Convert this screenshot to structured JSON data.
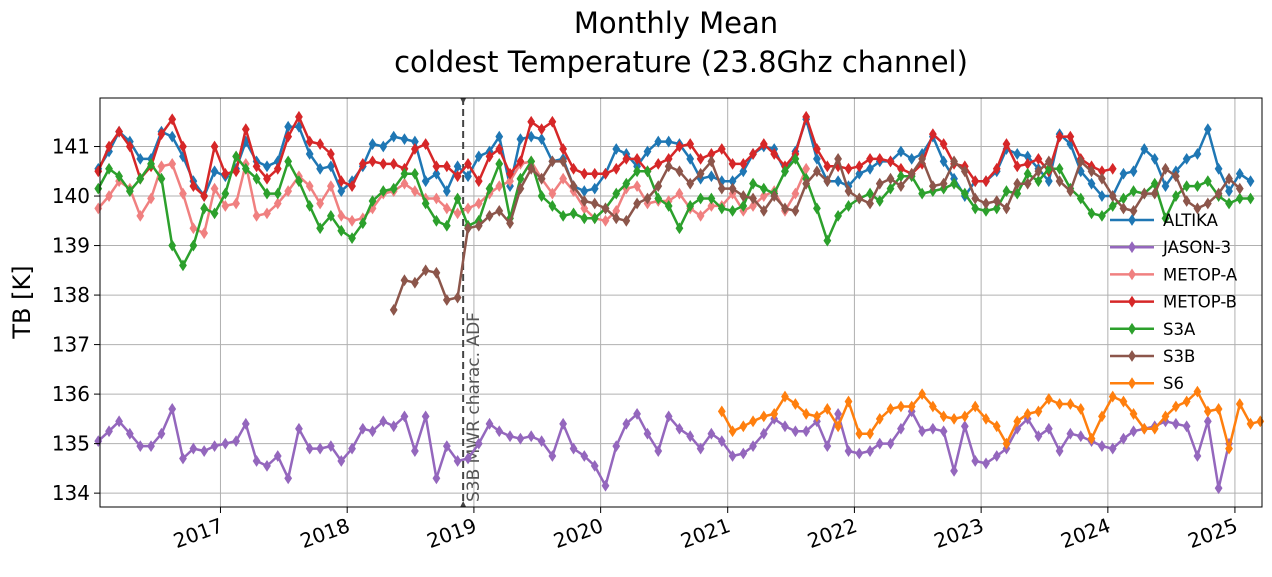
{
  "chart_data": {
    "type": "line",
    "title": "Monthly Mean\ncoldest Temperature (23.8Ghz channel)",
    "title_lines": [
      "Monthly Mean",
      "coldest Temperature (23.8Ghz channel)"
    ],
    "xlabel": "",
    "ylabel": "TB [K]",
    "xlim": [
      "2016-01-20",
      "2025-03-20"
    ],
    "ylim": [
      133.72,
      141.98
    ],
    "x_ticks": [
      "2017",
      "2018",
      "2019",
      "2020",
      "2021",
      "2022",
      "2023",
      "2024",
      "2025"
    ],
    "y_ticks": [
      134,
      135,
      136,
      137,
      138,
      139,
      140,
      141
    ],
    "grid": true,
    "legend_position": "right",
    "marker": "thin diamond",
    "annotation": {
      "date": "2018-12-01",
      "text": "S3B MWR charac. ADF",
      "style": "dashed vertical line"
    },
    "series": [
      {
        "name": "ALTIKA",
        "color": "#1f77b4",
        "start": "2016-01",
        "values": [
          140.55,
          140.9,
          141.3,
          141.1,
          140.75,
          140.75,
          141.3,
          141.2,
          140.8,
          140.3,
          140,
          140.5,
          140.4,
          140.55,
          141.1,
          140.7,
          140.6,
          140.7,
          141.4,
          141.4,
          140.85,
          140.55,
          140.6,
          140.1,
          140.3,
          140.6,
          141.05,
          141,
          141.2,
          141.15,
          141.1,
          140.3,
          140.45,
          140.1,
          140.6,
          140.4,
          140.8,
          140.9,
          141.2,
          140.2,
          141.15,
          141.2,
          141.15,
          140.7,
          140.75,
          140.2,
          140.1,
          140.15,
          140.45,
          140.95,
          140.85,
          140.6,
          140.9,
          141.1,
          141.1,
          141.05,
          140.75,
          140.35,
          140.4,
          140.3,
          140.3,
          140.5,
          140.85,
          141,
          140.95,
          140.5,
          140.9,
          141.55,
          140.75,
          140.3,
          140.3,
          140.2,
          140.45,
          140.55,
          140.7,
          140.7,
          140.9,
          140.75,
          140.85,
          141.2,
          140.7,
          140.35,
          140,
          140.3,
          140.3,
          140.5,
          140.95,
          140.85,
          140.8,
          140.55,
          140.3,
          141.25,
          141.05,
          140.5,
          140.25,
          140,
          140,
          140.45,
          140.5,
          140.95,
          140.75,
          140.2,
          140.5,
          140.75,
          140.85,
          141.35,
          140.55,
          140.1,
          140.45,
          140.3
        ]
      },
      {
        "name": "JASON-3",
        "color": "#9467bd",
        "start": "2016-01",
        "values": [
          135.05,
          135.25,
          135.45,
          135.2,
          134.95,
          134.95,
          135.2,
          135.7,
          134.7,
          134.9,
          134.85,
          134.95,
          135,
          135.05,
          135.4,
          134.65,
          134.55,
          134.75,
          134.3,
          135.3,
          134.9,
          134.9,
          134.95,
          134.65,
          134.9,
          135.3,
          135.25,
          135.45,
          135.35,
          135.55,
          134.85,
          135.55,
          134.3,
          134.95,
          134.65,
          134.7,
          135,
          135.4,
          135.25,
          135.15,
          135.1,
          135.15,
          135.05,
          134.75,
          135.4,
          134.9,
          134.75,
          134.55,
          134.15,
          134.95,
          135.4,
          135.6,
          135.2,
          134.85,
          135.55,
          135.3,
          135.15,
          134.9,
          135.2,
          135.05,
          134.75,
          134.8,
          134.95,
          135.2,
          135.5,
          135.35,
          135.25,
          135.25,
          135.45,
          134.95,
          135.6,
          134.85,
          134.8,
          134.85,
          135,
          135,
          135.3,
          135.65,
          135.25,
          135.3,
          135.25,
          134.45,
          135.35,
          134.65,
          134.6,
          134.75,
          134.9,
          135.3,
          135.5,
          135.15,
          135.3,
          134.85,
          135.2,
          135.15,
          135.05,
          134.95,
          134.9,
          135.1,
          135.25,
          135.3,
          135.35,
          135.45,
          135.4,
          135.35,
          134.75,
          135.45,
          134.1,
          135
        ]
      },
      {
        "name": "METOP-A",
        "color": "#f08080",
        "start": "2016-01",
        "values": [
          139.75,
          140,
          140.3,
          140.15,
          139.6,
          139.95,
          140.6,
          140.65,
          140.05,
          139.35,
          139.25,
          140.15,
          139.8,
          139.85,
          140.65,
          139.6,
          139.65,
          139.85,
          140.1,
          140.4,
          140.2,
          139.85,
          140.2,
          139.6,
          139.5,
          139.55,
          139.75,
          140.05,
          140.1,
          140.25,
          140.1,
          139.95,
          139.95,
          139.75,
          139.65,
          139.75,
          139.85,
          140.05,
          140.2,
          140.3,
          140.65,
          140.7,
          140.35,
          140.05,
          140.35,
          140.1,
          139.75,
          139.55,
          139.5,
          139.7,
          140.15,
          140.2,
          139.85,
          139.9,
          139.9,
          140.05,
          139.75,
          139.6,
          139.8,
          139.8,
          140.05,
          139.7,
          139.8,
          140,
          140.1,
          139.7,
          140.05,
          140.55
        ]
      },
      {
        "name": "METOP-B",
        "color": "#d62728",
        "start": "2016-01",
        "values": [
          140.5,
          141,
          141.3,
          141,
          140.35,
          140.6,
          141.25,
          141.55,
          141,
          140.2,
          140,
          141,
          140.45,
          140.5,
          141.35,
          140.6,
          140.35,
          140.55,
          141.2,
          141.6,
          141.1,
          141.05,
          140.85,
          140.3,
          140.2,
          140.65,
          140.7,
          140.65,
          140.65,
          140.55,
          140.95,
          141.05,
          140.6,
          140.6,
          140.4,
          140.65,
          140.3,
          140.8,
          140.95,
          140.45,
          140.7,
          141.5,
          141.35,
          141.5,
          140.95,
          140.55,
          140.45,
          140.45,
          140.45,
          140.55,
          140.75,
          140.75,
          140.5,
          140.65,
          140.75,
          141,
          141.05,
          140.75,
          140.85,
          140.95,
          140.65,
          140.65,
          140.85,
          141.05,
          140.85,
          140.6,
          140.85,
          141.6,
          140.95,
          140.6,
          140.6,
          140.55,
          140.6,
          140.75,
          140.75,
          140.7,
          140.55,
          140.45,
          140.65,
          141.25,
          141.05,
          140.65,
          140.6,
          140.3,
          140.3,
          140.55,
          141.05,
          140.6,
          140.65,
          140.75,
          140.5,
          141.2,
          141.2,
          140.75,
          140.6,
          140.5,
          140.55
        ]
      },
      {
        "name": "S3A",
        "color": "#2ca02c",
        "start": "2016-01",
        "values": [
          140.15,
          140.55,
          140.4,
          140.1,
          140.35,
          140.65,
          140.35,
          139,
          138.6,
          139,
          139.75,
          139.65,
          140.05,
          140.8,
          140.55,
          140.35,
          140.05,
          140.05,
          140.7,
          140.3,
          139.8,
          139.35,
          139.6,
          139.3,
          139.15,
          139.45,
          139.9,
          140.1,
          140.15,
          140.45,
          140.45,
          139.85,
          139.5,
          139.4,
          139.95,
          139.4,
          139.5,
          140.15,
          140.65,
          139.55,
          140.35,
          140.7,
          140,
          139.8,
          139.6,
          139.65,
          139.55,
          139.55,
          139.75,
          140.05,
          140.25,
          140.5,
          140.5,
          139.95,
          139.8,
          139.35,
          139.8,
          139.95,
          139.95,
          139.75,
          139.7,
          139.8,
          140.25,
          140.15,
          140.05,
          140.5,
          140.75,
          140.35,
          139.75,
          139.1,
          139.6,
          139.8,
          139.95,
          140.05,
          139.9,
          140.15,
          140.4,
          140.4,
          140.05,
          140.1,
          140.15,
          140.25,
          140.05,
          139.75,
          139.7,
          139.75,
          140.1,
          140.05,
          140.45,
          140.3,
          140.55,
          140.55,
          140.15,
          139.95,
          139.65,
          139.6,
          139.8,
          139.95,
          140.1,
          140.05,
          140.25,
          139.55,
          140,
          140.2,
          140.2,
          140.3,
          140,
          139.85,
          139.95,
          139.95
        ]
      },
      {
        "name": "S3B",
        "color": "#8c564b",
        "start": "2018-05",
        "values": [
          137.7,
          138.3,
          138.25,
          138.5,
          138.45,
          137.9,
          137.95,
          139.35,
          139.4,
          139.6,
          139.7,
          139.45,
          140.15,
          140.55,
          140.35,
          140.7,
          140.7,
          140.2,
          139.9,
          139.85,
          139.75,
          139.55,
          139.5,
          139.85,
          139.95,
          140.2,
          140.6,
          140.5,
          140.25,
          140.45,
          140.7,
          140.15,
          140.15,
          140,
          139.95,
          139.7,
          140,
          139.75,
          139.7,
          140.25,
          140.5,
          140.3,
          140.75,
          140.1,
          139.95,
          139.85,
          140.25,
          140.35,
          140.2,
          140.45,
          140.75,
          140.2,
          140.25,
          140.7,
          140.5,
          139.95,
          139.85,
          139.9,
          139.75,
          140.25,
          140.25,
          140.5,
          140.7,
          140.3,
          140.1,
          140.7,
          140.5,
          140.35,
          140,
          139.75,
          139.7,
          140.05,
          140.05,
          140.55,
          140.4,
          139.9,
          139.75,
          139.85,
          140.05,
          140.35,
          140.15
        ]
      },
      {
        "name": "S6",
        "color": "#ff7f0e",
        "start": "2020-12",
        "values": [
          135.65,
          135.25,
          135.35,
          135.45,
          135.55,
          135.6,
          135.95,
          135.8,
          135.6,
          135.55,
          135.7,
          135.35,
          135.85,
          135.2,
          135.2,
          135.5,
          135.7,
          135.75,
          135.75,
          136,
          135.75,
          135.55,
          135.5,
          135.55,
          135.75,
          135.5,
          135.35,
          135,
          135.45,
          135.6,
          135.65,
          135.9,
          135.8,
          135.8,
          135.7,
          135.1,
          135.55,
          135.95,
          135.85,
          135.6,
          135.3,
          135.3,
          135.55,
          135.75,
          135.85,
          136.05,
          135.65,
          135.7,
          134.9,
          135.8,
          135.4,
          135.45
        ]
      }
    ]
  }
}
